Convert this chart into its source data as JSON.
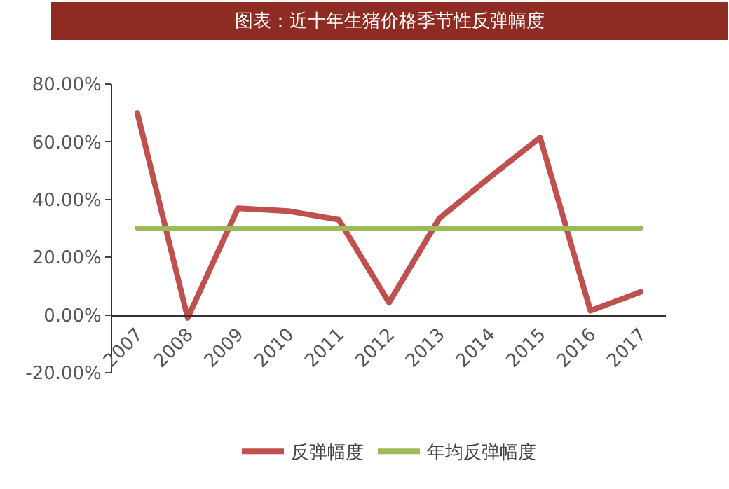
{
  "chart_data": {
    "type": "line",
    "title": "图表：近十年生猪价格季节性反弹幅度",
    "categories": [
      "2007",
      "2008",
      "2009",
      "2010",
      "2011",
      "2012",
      "2013",
      "2014",
      "2015",
      "2016",
      "2017"
    ],
    "series": [
      {
        "name": "反弹幅度",
        "color": "#c0504d",
        "values": [
          70,
          -1,
          37,
          36,
          33,
          4.3,
          33.5,
          47.7,
          61.5,
          1.5,
          8
        ]
      },
      {
        "name": "年均反弹幅度",
        "color": "#9bbb59",
        "values": [
          30,
          30,
          30,
          30,
          30,
          30,
          30,
          30,
          30,
          30,
          30
        ]
      }
    ],
    "ylim": [
      -20,
      80
    ],
    "yticks": [
      {
        "value": -20,
        "label": "-20.00%"
      },
      {
        "value": 0,
        "label": "0.00%"
      },
      {
        "value": 20,
        "label": "20.00%"
      },
      {
        "value": 40,
        "label": "40.00%"
      },
      {
        "value": 60,
        "label": "60.00%"
      },
      {
        "value": 80,
        "label": "80.00%"
      }
    ],
    "legend": "bottom",
    "marker": "none",
    "line_style": "solid"
  }
}
